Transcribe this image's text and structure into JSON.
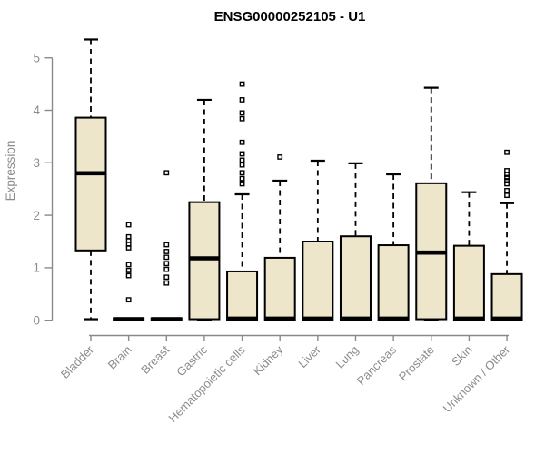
{
  "chart_data": {
    "type": "boxplot",
    "title": "ENSG00000252105 - U1",
    "xlabel": "",
    "ylabel": "Expression",
    "ylim": [
      0,
      5
    ],
    "yticks": [
      0,
      1,
      2,
      3,
      4,
      5
    ],
    "grid": false,
    "legend": false,
    "categories": [
      "Bladder",
      "Brain",
      "Breast",
      "Gastric",
      "Hematopoietic cells",
      "Kidney",
      "Liver",
      "Lung",
      "Pancreas",
      "Prostate",
      "Skin",
      "Unknown / Other"
    ],
    "boxes": [
      {
        "category": "Bladder",
        "whisker_low": 0.02,
        "q1": 1.33,
        "median": 2.8,
        "q3": 3.86,
        "whisker_high": 5.35,
        "outliers": []
      },
      {
        "category": "Brain",
        "whisker_low": 0.0,
        "q1": 0.0,
        "median": 0.02,
        "q3": 0.04,
        "whisker_high": 0.04,
        "outliers": [
          1.82,
          1.59,
          1.52,
          1.45,
          1.38,
          1.06,
          0.95,
          0.85,
          0.39
        ]
      },
      {
        "category": "Breast",
        "whisker_low": 0.0,
        "q1": 0.0,
        "median": 0.02,
        "q3": 0.04,
        "whisker_high": 0.04,
        "outliers": [
          2.81,
          1.44,
          1.31,
          1.2,
          1.08,
          0.97,
          0.82,
          0.71
        ]
      },
      {
        "category": "Gastric",
        "whisker_low": 0.0,
        "q1": 0.02,
        "median": 1.18,
        "q3": 2.25,
        "whisker_high": 4.2,
        "outliers": []
      },
      {
        "category": "Hematopoietic cells",
        "whisker_low": 0.0,
        "q1": 0.0,
        "median": 0.03,
        "q3": 0.93,
        "whisker_high": 2.4,
        "outliers": [
          4.5,
          4.2,
          3.95,
          3.84,
          3.39,
          3.17,
          3.05,
          2.96,
          2.81,
          2.7,
          2.6
        ]
      },
      {
        "category": "Kidney",
        "whisker_low": 0.0,
        "q1": 0.0,
        "median": 0.03,
        "q3": 1.19,
        "whisker_high": 2.66,
        "outliers": [
          3.11
        ]
      },
      {
        "category": "Liver",
        "whisker_low": 0.0,
        "q1": 0.0,
        "median": 0.03,
        "q3": 1.5,
        "whisker_high": 3.04,
        "outliers": []
      },
      {
        "category": "Lung",
        "whisker_low": 0.0,
        "q1": 0.0,
        "median": 0.03,
        "q3": 1.6,
        "whisker_high": 2.99,
        "outliers": []
      },
      {
        "category": "Pancreas",
        "whisker_low": 0.0,
        "q1": 0.0,
        "median": 0.03,
        "q3": 1.43,
        "whisker_high": 2.78,
        "outliers": []
      },
      {
        "category": "Prostate",
        "whisker_low": 0.0,
        "q1": 0.02,
        "median": 1.29,
        "q3": 2.61,
        "whisker_high": 4.43,
        "outliers": []
      },
      {
        "category": "Skin",
        "whisker_low": 0.0,
        "q1": 0.0,
        "median": 0.03,
        "q3": 1.42,
        "whisker_high": 2.44,
        "outliers": []
      },
      {
        "category": "Unknown / Other",
        "whisker_low": 0.0,
        "q1": 0.0,
        "median": 0.03,
        "q3": 0.88,
        "whisker_high": 2.23,
        "outliers": [
          3.2,
          2.85,
          2.78,
          2.72,
          2.66,
          2.6,
          2.47,
          2.38
        ]
      }
    ],
    "colors": {
      "box_fill": "#EDE6CB",
      "box_stroke": "#000000",
      "median_color": "#000000",
      "whisker_color": "#000000",
      "outlier_stroke": "#000000",
      "axis_color": "#8a8a8a",
      "tick_label_color": "#8c8c8c",
      "ylabel_color": "#8c8c8c",
      "title_color": "#000000",
      "background": "#ffffff"
    }
  }
}
